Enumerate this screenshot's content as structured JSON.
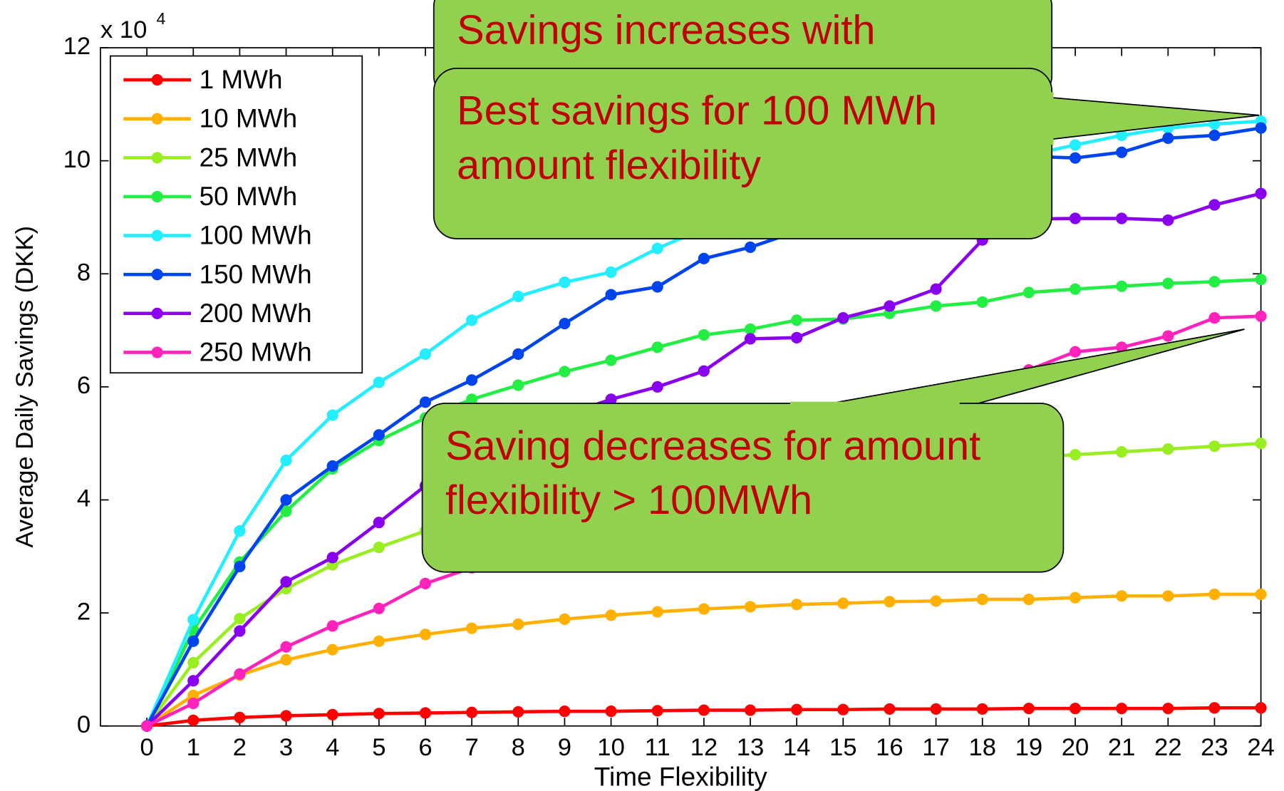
{
  "chart_data": {
    "type": "line",
    "y_label": "Average Daily Savings (DKK)",
    "x_label": "Time Flexibility",
    "y_multiplier": {
      "base": "x 10",
      "exponent": "4"
    },
    "x": [
      0,
      1,
      2,
      3,
      4,
      5,
      6,
      7,
      8,
      9,
      10,
      11,
      12,
      13,
      14,
      15,
      16,
      17,
      18,
      19,
      20,
      21,
      22,
      23,
      24
    ],
    "xlim": [
      -1,
      24
    ],
    "xticks": [
      0,
      1,
      2,
      3,
      4,
      5,
      6,
      7,
      8,
      9,
      10,
      11,
      12,
      13,
      14,
      15,
      16,
      17,
      18,
      19,
      20,
      21,
      22,
      23,
      24
    ],
    "ylim": [
      0,
      12
    ],
    "yticks": [
      0,
      2,
      4,
      6,
      8,
      10,
      12
    ],
    "legend": "upper left",
    "series": [
      {
        "name": "1 MWh",
        "color": "#ff0000",
        "values": [
          0,
          0.1,
          0.15,
          0.18,
          0.2,
          0.22,
          0.23,
          0.24,
          0.25,
          0.26,
          0.26,
          0.27,
          0.28,
          0.28,
          0.29,
          0.29,
          0.3,
          0.3,
          0.3,
          0.31,
          0.31,
          0.31,
          0.31,
          0.32,
          0.32
        ]
      },
      {
        "name": "10 MWh",
        "color": "#ffb000",
        "values": [
          0,
          0.54,
          0.9,
          1.17,
          1.35,
          1.5,
          1.62,
          1.73,
          1.8,
          1.89,
          1.96,
          2.02,
          2.07,
          2.11,
          2.15,
          2.17,
          2.2,
          2.21,
          2.24,
          2.24,
          2.27,
          2.3,
          2.3,
          2.33,
          2.33
        ]
      },
      {
        "name": "25 MWh",
        "color": "#99ee22",
        "values": [
          0,
          1.12,
          1.9,
          2.43,
          2.85,
          3.16,
          3.45,
          3.7,
          3.9,
          4.05,
          4.2,
          4.3,
          4.4,
          4.45,
          4.5,
          4.55,
          4.6,
          4.65,
          4.7,
          4.75,
          4.8,
          4.85,
          4.9,
          4.95,
          5.0
        ]
      },
      {
        "name": "50 MWh",
        "color": "#22ee44",
        "values": [
          0,
          1.7,
          2.9,
          3.8,
          4.55,
          5.05,
          5.45,
          5.78,
          6.03,
          6.27,
          6.47,
          6.7,
          6.92,
          7.02,
          7.18,
          7.2,
          7.3,
          7.43,
          7.5,
          7.67,
          7.73,
          7.78,
          7.83,
          7.86,
          7.9
        ]
      },
      {
        "name": "100 MWh",
        "color": "#22eeff",
        "values": [
          0,
          1.88,
          3.45,
          4.7,
          5.5,
          6.08,
          6.58,
          7.18,
          7.6,
          7.85,
          8.03,
          8.45,
          8.8,
          9.05,
          9.3,
          9.5,
          9.7,
          9.85,
          10.0,
          10.1,
          10.28,
          10.45,
          10.58,
          10.65,
          10.7
        ]
      },
      {
        "name": "150 MWh",
        "color": "#0044ee",
        "values": [
          0,
          1.5,
          2.82,
          4.0,
          4.6,
          5.15,
          5.73,
          6.12,
          6.58,
          7.12,
          7.63,
          7.77,
          8.27,
          8.47,
          8.75,
          9.0,
          9.2,
          9.4,
          9.7,
          10.08,
          10.05,
          10.15,
          10.4,
          10.45,
          10.58
        ]
      },
      {
        "name": "200 MWh",
        "color": "#8800ee",
        "values": [
          0,
          0.8,
          1.68,
          2.55,
          2.98,
          3.6,
          4.25,
          4.8,
          5.2,
          5.5,
          5.78,
          6.0,
          6.28,
          6.85,
          6.87,
          7.22,
          7.43,
          7.73,
          8.6,
          8.97,
          8.98,
          8.98,
          8.95,
          9.22,
          9.42
        ]
      },
      {
        "name": "250 MWh",
        "color": "#ff22bb",
        "values": [
          0,
          0.4,
          0.92,
          1.4,
          1.77,
          2.08,
          2.52,
          2.8,
          3.1,
          3.4,
          3.7,
          4.0,
          4.3,
          4.6,
          4.9,
          5.2,
          5.5,
          5.8,
          6.05,
          6.3,
          6.62,
          6.7,
          6.9,
          7.22,
          7.25
        ]
      }
    ],
    "annotations": [
      {
        "lines": [
          "Savings increases with"
        ]
      },
      {
        "lines": [
          "Best savings for 100 MWh",
          "amount flexibility"
        ]
      },
      {
        "lines": [
          "Saving decreases for amount",
          "flexibility > 100MWh"
        ]
      }
    ]
  }
}
